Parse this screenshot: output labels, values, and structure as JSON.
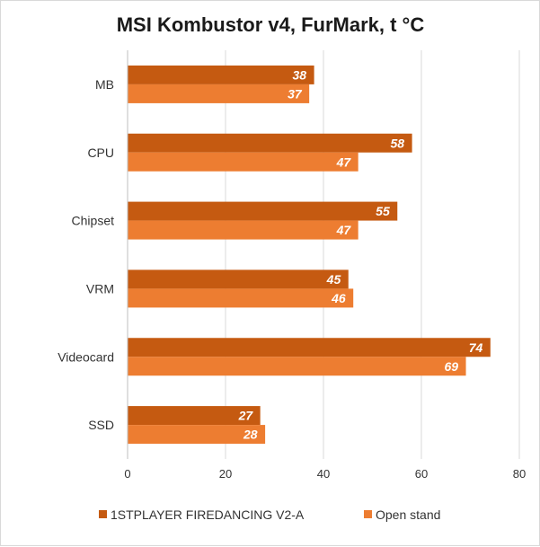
{
  "chart_data": {
    "type": "bar",
    "orientation": "horizontal",
    "title": "MSI Kombustor v4, FurMark, t °C",
    "categories": [
      "MB",
      "CPU",
      "Chipset",
      "VRM",
      "Videocard",
      "SSD"
    ],
    "series": [
      {
        "name": "1STPLAYER FIREDANCING V2-A",
        "color": "#c55a11",
        "values": [
          38,
          58,
          55,
          45,
          74,
          27
        ]
      },
      {
        "name": "Open stand",
        "color": "#ed7d31",
        "values": [
          37,
          47,
          47,
          46,
          69,
          28
        ]
      }
    ],
    "xlim": [
      0,
      80
    ],
    "xticks": [
      0,
      20,
      40,
      60,
      80
    ],
    "grid": true,
    "legend": "bottom"
  }
}
